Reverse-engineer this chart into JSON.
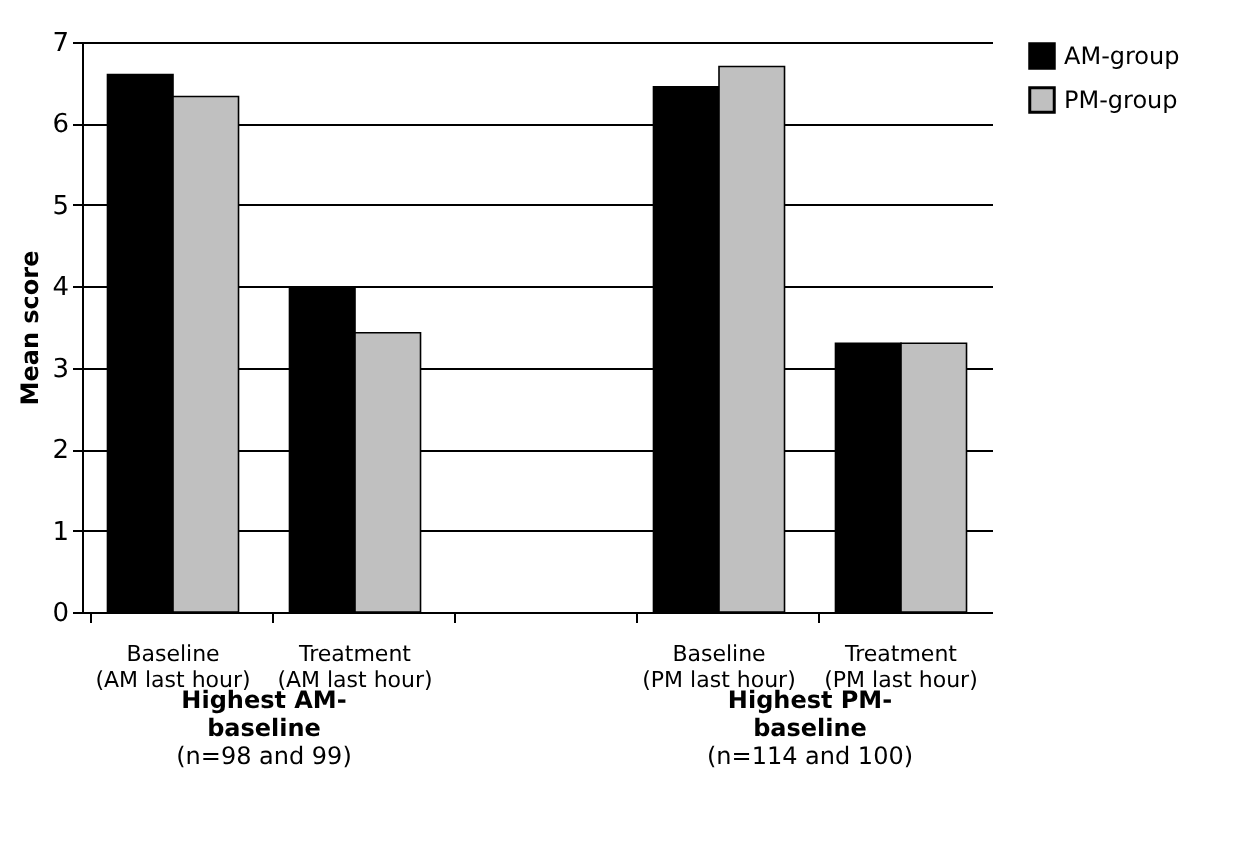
{
  "chart_data": {
    "type": "bar",
    "ylabel": "Mean score",
    "categories": [
      "Baseline (AM last hour)",
      "Treatment (AM last hour)",
      null,
      "Baseline (PM last hour)",
      "Treatment (PM last hour)"
    ],
    "series": [
      {
        "name": "AM-group",
        "color": "#000000",
        "values": [
          6.6,
          3.97,
          null,
          6.45,
          3.3
        ]
      },
      {
        "name": "PM-group",
        "color": "#c0c0c0",
        "values": [
          6.33,
          3.43,
          null,
          6.7,
          3.3
        ]
      }
    ],
    "ylim": [
      0,
      7
    ],
    "yticks": [
      0,
      1,
      2,
      3,
      4,
      5,
      6,
      7
    ],
    "grid": "y",
    "legend": "right",
    "annotations": [
      "Highest AM-baseline (n=98 and 99)",
      "Highest PM-baseline (n=114 and 100)"
    ]
  }
}
